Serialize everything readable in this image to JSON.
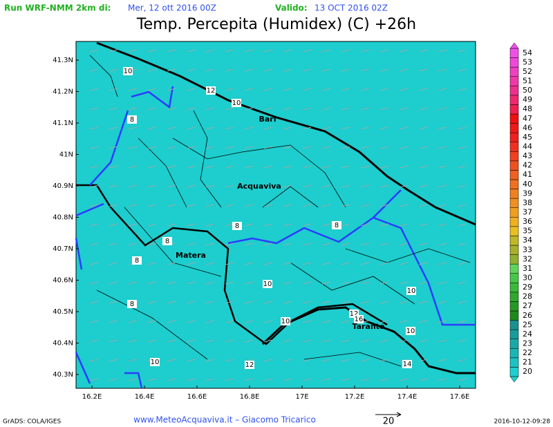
{
  "header": {
    "run_label": "Run WRF-NMM 2km di:",
    "run_date": "Mer, 12 ott 2016 00Z",
    "valid_label": "Valido:",
    "valid_date": "13 OCT 2016 02Z",
    "title": "Temp. Percepita (Humidex) (C) +26h"
  },
  "map": {
    "lat_labels": [
      "41.3N",
      "41.2N",
      "41.1N",
      "41N",
      "40.9N",
      "40.8N",
      "40.7N",
      "40.6N",
      "40.5N",
      "40.4N",
      "40.3N"
    ],
    "lon_labels": [
      "16.2E",
      "16.4E",
      "16.6E",
      "16.8E",
      "17E",
      "17.2E",
      "17.4E",
      "17.6E"
    ],
    "cities": [
      "Bari",
      "Acquaviva",
      "Matera",
      "Taranto"
    ],
    "contour_labels": [
      "10",
      "12",
      "10",
      "8",
      "8",
      "8",
      "8",
      "8",
      "8",
      "10",
      "10",
      "10",
      "12",
      "16",
      "10",
      "10",
      "12",
      "14"
    ]
  },
  "colorbar": {
    "levels": [
      20,
      21,
      22,
      23,
      24,
      25,
      26,
      27,
      28,
      29,
      30,
      31,
      32,
      33,
      34,
      35,
      36,
      37,
      38,
      39,
      40,
      41,
      42,
      43,
      44,
      45,
      46,
      47,
      48,
      49,
      50,
      51,
      52,
      53,
      54
    ],
    "colors": [
      "#1ecfcf",
      "#1cc3c3",
      "#1ab6b6",
      "#19a9a9",
      "#179c9c",
      "#1a9090",
      "#1e8a1e",
      "#259925",
      "#2ea82e",
      "#3ab83a",
      "#48c648",
      "#5ed45e",
      "#8fb030",
      "#a8b02a",
      "#c0b826",
      "#e8c020",
      "#f0b020",
      "#f0a020",
      "#f09020",
      "#f08020",
      "#f07020",
      "#f06020",
      "#f05020",
      "#f04020",
      "#f03020",
      "#f02020",
      "#f01818",
      "#f01010",
      "#f02050",
      "#f02870",
      "#f03090",
      "#f038a8",
      "#f040c0",
      "#f048d8",
      "#f050e8"
    ]
  },
  "footer": {
    "credit_left": "GrADS: COLA/IGES",
    "site": "www.MeteoAcquaviva.it  –  Giacomo Tricarico",
    "vector_scale": "20",
    "timestamp": "2016-10-12-09:28"
  }
}
